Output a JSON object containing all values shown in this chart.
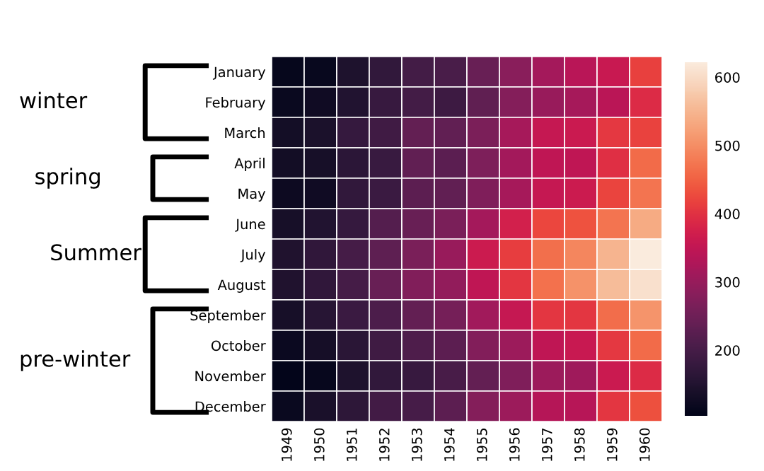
{
  "chart_data": {
    "type": "heatmap",
    "categories": [
      "1949",
      "1950",
      "1951",
      "1952",
      "1953",
      "1954",
      "1955",
      "1956",
      "1957",
      "1958",
      "1959",
      "1960"
    ],
    "y_categories": [
      "January",
      "February",
      "March",
      "April",
      "May",
      "June",
      "July",
      "August",
      "September",
      "October",
      "November",
      "December"
    ],
    "cells": [
      [
        112,
        115,
        145,
        171,
        196,
        204,
        242,
        284,
        315,
        340,
        360,
        417
      ],
      [
        118,
        126,
        150,
        180,
        196,
        188,
        233,
        277,
        301,
        318,
        342,
        391
      ],
      [
        132,
        141,
        178,
        193,
        236,
        235,
        267,
        317,
        356,
        362,
        406,
        419
      ],
      [
        129,
        135,
        163,
        181,
        235,
        227,
        269,
        313,
        348,
        348,
        396,
        461
      ],
      [
        121,
        125,
        172,
        183,
        229,
        234,
        270,
        318,
        355,
        363,
        420,
        472
      ],
      [
        135,
        149,
        178,
        218,
        243,
        264,
        315,
        374,
        422,
        435,
        472,
        535
      ],
      [
        148,
        170,
        199,
        230,
        264,
        302,
        364,
        413,
        465,
        491,
        548,
        622
      ],
      [
        148,
        170,
        199,
        242,
        272,
        293,
        347,
        405,
        467,
        505,
        559,
        606
      ],
      [
        136,
        158,
        184,
        209,
        237,
        259,
        312,
        355,
        404,
        404,
        463,
        508
      ],
      [
        119,
        133,
        162,
        191,
        211,
        229,
        274,
        306,
        347,
        359,
        407,
        461
      ],
      [
        104,
        114,
        146,
        172,
        180,
        203,
        237,
        271,
        305,
        310,
        362,
        390
      ],
      [
        118,
        140,
        166,
        194,
        201,
        229,
        278,
        306,
        336,
        337,
        405,
        432
      ]
    ],
    "clim": [
      104,
      622
    ],
    "cticks": [
      200,
      300,
      400,
      500,
      600
    ],
    "annotations": [
      "winter",
      "spring",
      "Summer",
      "pre-winter"
    ]
  }
}
